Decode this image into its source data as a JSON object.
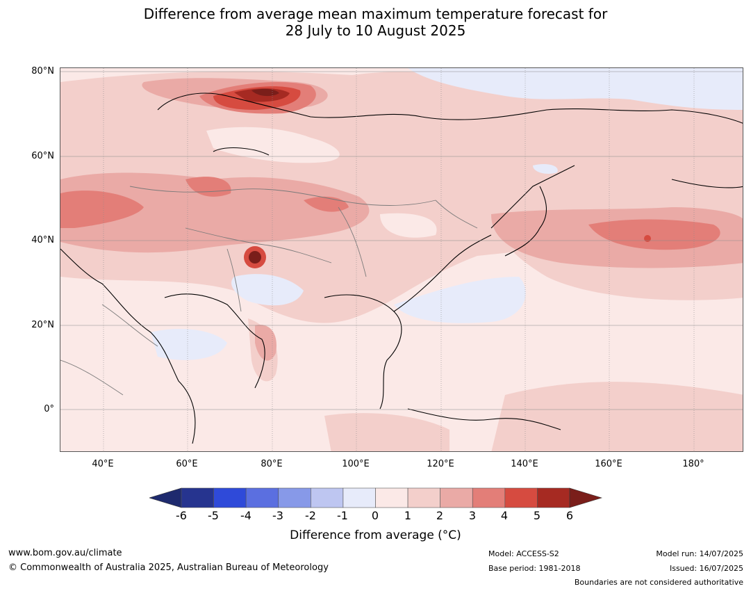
{
  "title_line1": "Difference from average mean maximum temperature forecast for",
  "title_line2": "28 July to 10 August 2025",
  "lat_labels": [
    "80°N",
    "60°N",
    "40°N",
    "20°N",
    "0°"
  ],
  "lon_labels": [
    "40°E",
    "60°E",
    "80°E",
    "100°E",
    "120°E",
    "140°E",
    "160°E",
    "180°"
  ],
  "colorbar": {
    "ticks": [
      "-6",
      "-5",
      "-4",
      "-3",
      "-2",
      "-1",
      "0",
      "1",
      "2",
      "3",
      "4",
      "5",
      "6"
    ],
    "label": "Difference from average ($^\\circ$C)",
    "label_display": "Difference from average (°C)",
    "colors": [
      "#26348f",
      "#2f4ad9",
      "#5b6fe0",
      "#8799e8",
      "#bec6f1",
      "#e7ebfa",
      "#fbe9e7",
      "#f3cfcb",
      "#eaaaa6",
      "#e37e78",
      "#d64b40",
      "#a62a22",
      "#7a1e1a",
      "#1e2a6e"
    ]
  },
  "footer": {
    "url": "www.bom.gov.au/climate",
    "copyright": "© Commonwealth of Australia 2025, Australian Bureau of Meteorology",
    "model": "Model: ACCESS-S2",
    "base_period": "Base period: 1981-2018",
    "model_run": "Model run: 14/07/2025",
    "issued": "Issued: 16/07/2025",
    "disclaimer": "Boundaries are not considered authoritative"
  }
}
